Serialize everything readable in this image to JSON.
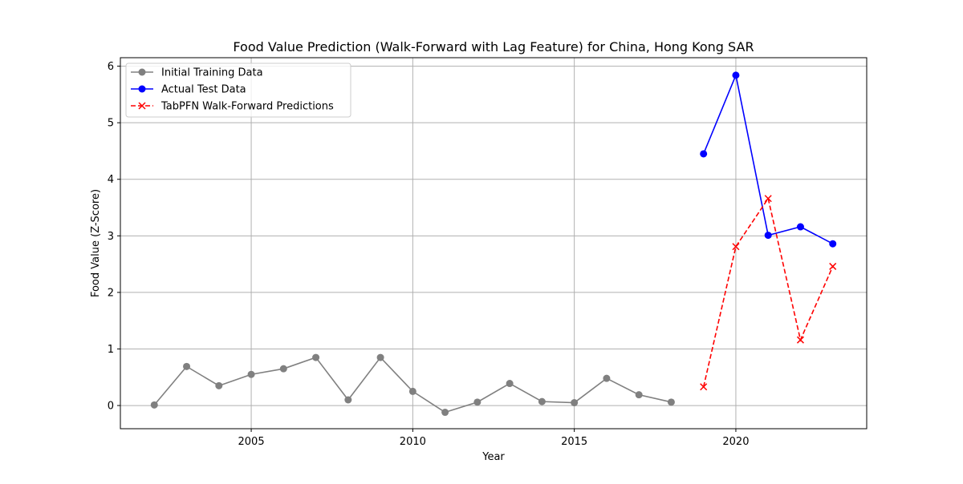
{
  "chart_data": {
    "type": "line",
    "title": "Food Value Prediction (Walk-Forward with Lag Feature) for China, Hong Kong SAR",
    "xlabel": "Year",
    "ylabel": "Food Value (Z-Score)",
    "xlim": [
      2000.95,
      2024.05
    ],
    "ylim": [
      -0.41,
      6.15
    ],
    "xticks": [
      2005,
      2010,
      2015,
      2020
    ],
    "yticks": [
      0,
      1,
      2,
      3,
      4,
      5,
      6
    ],
    "grid": true,
    "legend_position": "top-left",
    "series": [
      {
        "name": "Initial Training Data",
        "color": "#808080",
        "line_style": "solid",
        "marker": "circle",
        "x": [
          2002,
          2003,
          2004,
          2005,
          2006,
          2007,
          2008,
          2009,
          2010,
          2011,
          2012,
          2013,
          2014,
          2015,
          2016,
          2017,
          2018
        ],
        "y": [
          0.01,
          0.69,
          0.35,
          0.55,
          0.65,
          0.85,
          0.1,
          0.85,
          0.25,
          -0.12,
          0.06,
          0.39,
          0.07,
          0.05,
          0.48,
          0.19,
          0.06
        ]
      },
      {
        "name": "Actual Test Data",
        "color": "#0000ff",
        "line_style": "solid",
        "marker": "circle",
        "x": [
          2019,
          2020,
          2021,
          2022,
          2023
        ],
        "y": [
          4.45,
          5.84,
          3.01,
          3.16,
          2.86
        ]
      },
      {
        "name": "TabPFN Walk-Forward Predictions",
        "color": "#ff0000",
        "line_style": "dashed",
        "marker": "x",
        "x": [
          2019,
          2020,
          2021,
          2022,
          2023
        ],
        "y": [
          0.33,
          2.81,
          3.66,
          1.16,
          2.46
        ]
      }
    ]
  }
}
